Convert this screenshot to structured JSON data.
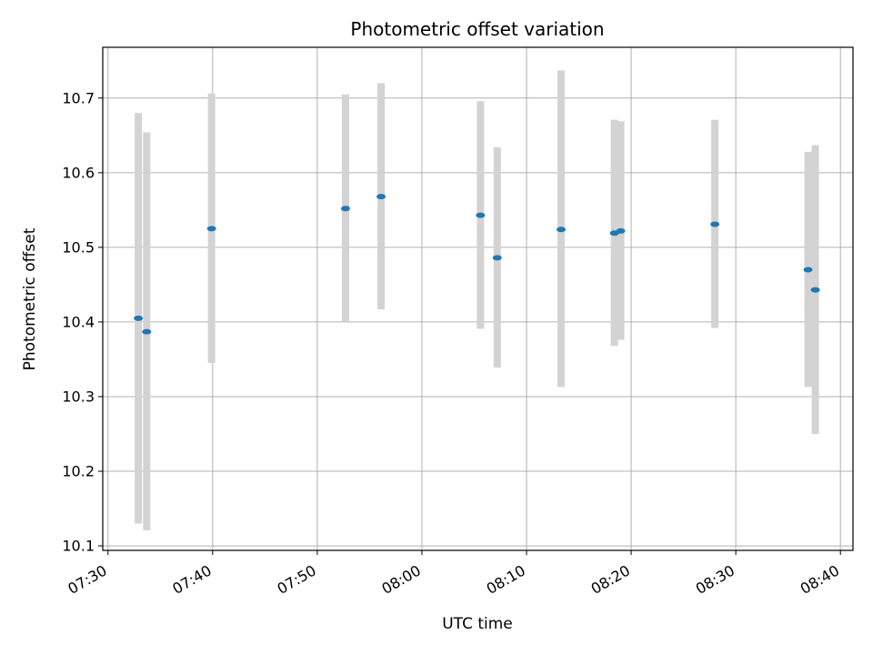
{
  "chart_data": {
    "type": "scatter",
    "title": "Photometric offset variation",
    "xlabel": "UTC time",
    "ylabel": "Photometric offset",
    "x_ticks": [
      "07:30",
      "07:40",
      "07:50",
      "08:00",
      "08:10",
      "08:20",
      "08:30",
      "08:40"
    ],
    "y_ticks": [
      "10.1",
      "10.2",
      "10.3",
      "10.4",
      "10.5",
      "10.6",
      "10.7"
    ],
    "xlim": [
      "07:29.5",
      "08:41.2"
    ],
    "ylim": [
      10.094,
      10.768
    ],
    "grid": true,
    "marker_color": "#1f77b4",
    "errorbar_color": "#d3d3d3",
    "points": [
      {
        "time": "07:32.9",
        "value": 10.405,
        "low": 10.13,
        "high": 10.68
      },
      {
        "time": "07:33.7",
        "value": 10.387,
        "low": 10.121,
        "high": 10.654
      },
      {
        "time": "07:39.9",
        "value": 10.525,
        "low": 10.345,
        "high": 10.706
      },
      {
        "time": "07:52.7",
        "value": 10.552,
        "low": 10.4,
        "high": 10.705
      },
      {
        "time": "07:56.1",
        "value": 10.568,
        "low": 10.417,
        "high": 10.72
      },
      {
        "time": "08:05.6",
        "value": 10.543,
        "low": 10.391,
        "high": 10.696
      },
      {
        "time": "08:07.2",
        "value": 10.486,
        "low": 10.339,
        "high": 10.634
      },
      {
        "time": "08:13.3",
        "value": 10.524,
        "low": 10.313,
        "high": 10.737
      },
      {
        "time": "08:18.4",
        "value": 10.519,
        "low": 10.368,
        "high": 10.671
      },
      {
        "time": "08:19.0",
        "value": 10.522,
        "low": 10.376,
        "high": 10.669
      },
      {
        "time": "08:28.0",
        "value": 10.531,
        "low": 10.392,
        "high": 10.671
      },
      {
        "time": "08:36.9",
        "value": 10.47,
        "low": 10.313,
        "high": 10.628
      },
      {
        "time": "08:37.6",
        "value": 10.443,
        "low": 10.25,
        "high": 10.637
      }
    ]
  }
}
